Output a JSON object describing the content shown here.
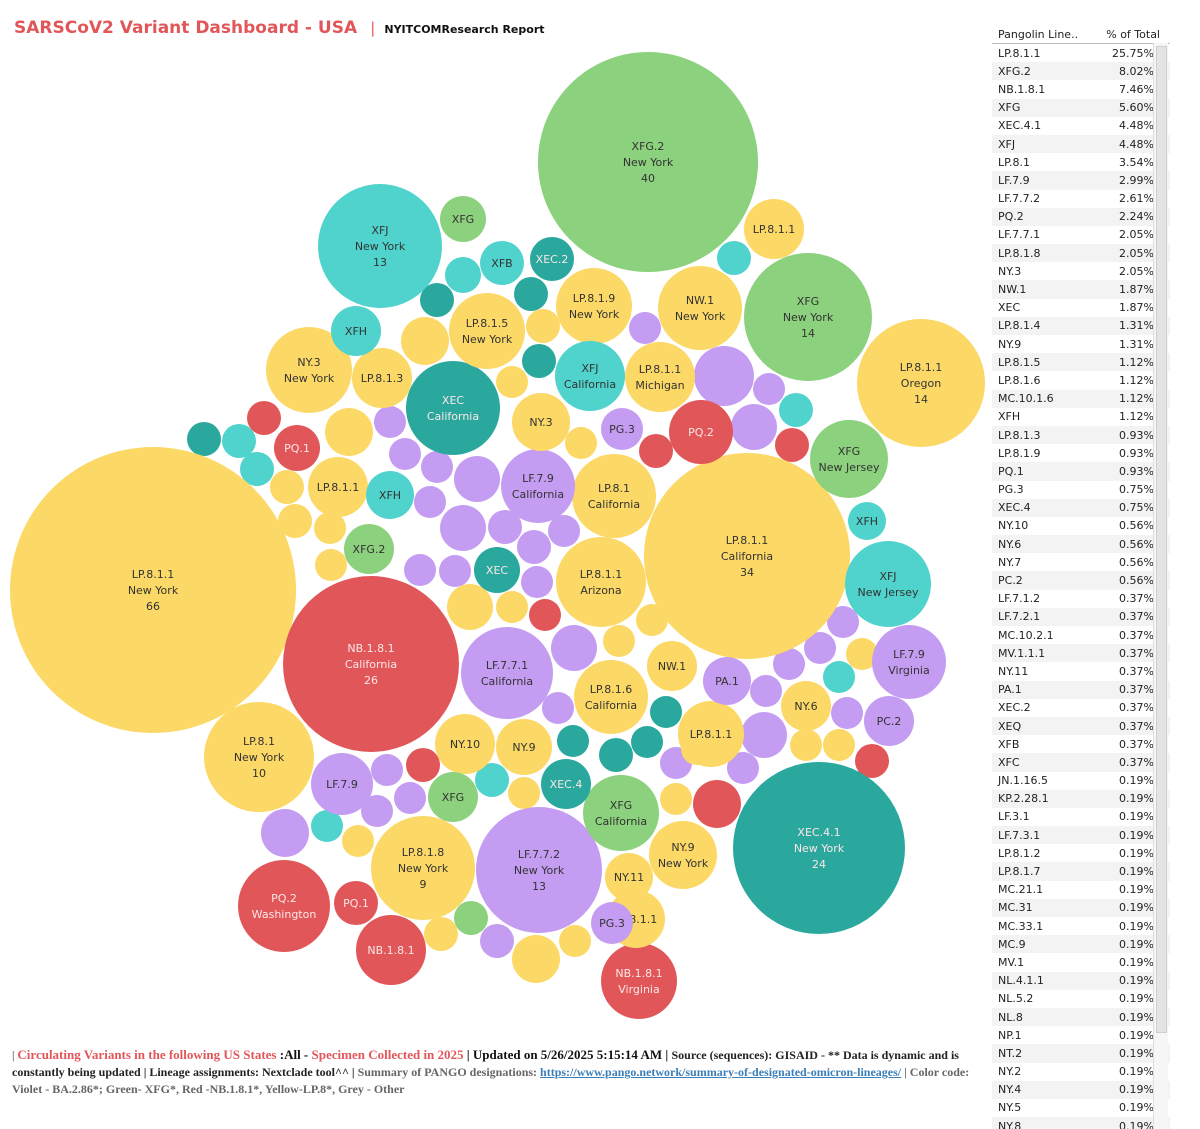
{
  "header": {
    "title": "SARSCoV2 Variant Dashboard - USA",
    "separator": "|",
    "subtitle": "NYITCOMResearch Report"
  },
  "colors": {
    "yellow": "#fcd866",
    "green": "#8cd17d",
    "red": "#e15759",
    "violet": "#c49cf2",
    "teal": "#2aa89e",
    "cyan": "#4fd3cc"
  },
  "chart_data": {
    "type": "bubble",
    "legend": [
      "Violet - BA.2.86*",
      "Green- XFG*",
      "Red -NB.1.8.1*",
      "Yellow-LP.8*",
      "Grey - Other"
    ],
    "labeled_bubbles": [
      {
        "lineage": "LP.8.1.1",
        "state": "New York",
        "count": "66",
        "color": "yellow"
      },
      {
        "lineage": "XFG.2",
        "state": "New York",
        "count": "40",
        "color": "green"
      },
      {
        "lineage": "LP.8.1.1",
        "state": "California",
        "count": "34",
        "color": "yellow"
      },
      {
        "lineage": "NB.1.8.1",
        "state": "California",
        "count": "26",
        "color": "red"
      },
      {
        "lineage": "XEC.4.1",
        "state": "New York",
        "count": "24",
        "color": "teal"
      },
      {
        "lineage": "XFG",
        "state": "New York",
        "count": "14",
        "color": "green"
      },
      {
        "lineage": "LP.8.1.1",
        "state": "Oregon",
        "count": "14",
        "color": "yellow"
      },
      {
        "lineage": "XFJ",
        "state": "New York",
        "count": "13",
        "color": "cyan"
      },
      {
        "lineage": "LF.7.7.2",
        "state": "New York",
        "count": "13",
        "color": "violet"
      },
      {
        "lineage": "LP.8.1",
        "state": "New York",
        "count": "10",
        "color": "yellow"
      },
      {
        "lineage": "LP.8.1.8",
        "state": "New York",
        "count": "9",
        "color": "yellow"
      },
      {
        "lineage": "LF.7.7.1",
        "state": "California",
        "count": "",
        "color": "violet"
      },
      {
        "lineage": "XFJ",
        "state": "New Jersey",
        "count": "",
        "color": "cyan"
      },
      {
        "lineage": "LF.7.9",
        "state": "Virginia",
        "count": "",
        "color": "violet"
      },
      {
        "lineage": "XFG",
        "state": "New Jersey",
        "count": "",
        "color": "green"
      },
      {
        "lineage": "LP.8.1.1",
        "state": "Arizona",
        "count": "",
        "color": "yellow"
      },
      {
        "lineage": "LP.8.1",
        "state": "California",
        "count": "",
        "color": "yellow"
      },
      {
        "lineage": "XEC",
        "state": "California",
        "count": "",
        "color": "teal"
      },
      {
        "lineage": "LF.7.9",
        "state": "California",
        "count": "",
        "color": "violet"
      },
      {
        "lineage": "LP.8.1.6",
        "state": "California",
        "count": "",
        "color": "yellow"
      },
      {
        "lineage": "XFG",
        "state": "California",
        "count": "",
        "color": "green"
      },
      {
        "lineage": "PQ.2",
        "state": "Washington",
        "count": "",
        "color": "red"
      },
      {
        "lineage": "NB.1.8.1",
        "state": "Virginia",
        "count": "",
        "color": "red"
      },
      {
        "lineage": "NY.3",
        "state": "New York",
        "count": "",
        "color": "yellow"
      },
      {
        "lineage": "LP.8.1.5",
        "state": "New York",
        "count": "",
        "color": "yellow"
      },
      {
        "lineage": "LP.8.1.9",
        "state": "New York",
        "count": "",
        "color": "yellow"
      },
      {
        "lineage": "NW.1",
        "state": "New York",
        "count": "",
        "color": "yellow"
      },
      {
        "lineage": "XFJ",
        "state": "California",
        "count": "",
        "color": "cyan"
      },
      {
        "lineage": "LP.8.1.1",
        "state": "Michigan",
        "count": "",
        "color": "yellow"
      },
      {
        "lineage": "NY.9",
        "state": "New York",
        "count": "",
        "color": "yellow"
      },
      {
        "lineage": "LP.8.1.1",
        "state": "",
        "count": "",
        "color": "yellow"
      },
      {
        "lineage": "LP.8.1.1",
        "state": "",
        "count": "",
        "color": "yellow"
      },
      {
        "lineage": "LP.8.1.1",
        "state": "",
        "count": "",
        "color": "yellow"
      },
      {
        "lineage": "LP.8.1.1",
        "state": "",
        "count": "",
        "color": "yellow"
      },
      {
        "lineage": "LP.8.1.3",
        "state": "",
        "count": "",
        "color": "yellow"
      },
      {
        "lineage": "XFG",
        "state": "",
        "count": "",
        "color": "green"
      },
      {
        "lineage": "XFB",
        "state": "",
        "count": "",
        "color": "cyan"
      },
      {
        "lineage": "XEC.2",
        "state": "",
        "count": "",
        "color": "teal"
      },
      {
        "lineage": "XFH",
        "state": "",
        "count": "",
        "color": "cyan"
      },
      {
        "lineage": "XFH",
        "state": "",
        "count": "",
        "color": "cyan"
      },
      {
        "lineage": "XFH",
        "state": "",
        "count": "",
        "color": "cyan"
      },
      {
        "lineage": "PQ.1",
        "state": "",
        "count": "",
        "color": "red"
      },
      {
        "lineage": "PQ.1",
        "state": "",
        "count": "",
        "color": "red"
      },
      {
        "lineage": "PQ.2",
        "state": "",
        "count": "",
        "color": "red"
      },
      {
        "lineage": "NY.3",
        "state": "",
        "count": "",
        "color": "yellow"
      },
      {
        "lineage": "PG.3",
        "state": "",
        "count": "",
        "color": "violet"
      },
      {
        "lineage": "PG.3",
        "state": "",
        "count": "",
        "color": "violet"
      },
      {
        "lineage": "XFG.2",
        "state": "",
        "count": "",
        "color": "green"
      },
      {
        "lineage": "XEC",
        "state": "",
        "count": "",
        "color": "teal"
      },
      {
        "lineage": "NW.1",
        "state": "",
        "count": "",
        "color": "yellow"
      },
      {
        "lineage": "PA.1",
        "state": "",
        "count": "",
        "color": "violet"
      },
      {
        "lineage": "NY.6",
        "state": "",
        "count": "",
        "color": "yellow"
      },
      {
        "lineage": "PC.2",
        "state": "",
        "count": "",
        "color": "violet"
      },
      {
        "lineage": "NY.10",
        "state": "",
        "count": "",
        "color": "yellow"
      },
      {
        "lineage": "NY.9",
        "state": "",
        "count": "",
        "color": "yellow"
      },
      {
        "lineage": "LF.7.9",
        "state": "",
        "count": "",
        "color": "violet"
      },
      {
        "lineage": "XFG",
        "state": "",
        "count": "",
        "color": "green"
      },
      {
        "lineage": "XEC.4",
        "state": "",
        "count": "",
        "color": "teal"
      },
      {
        "lineage": "NY.11",
        "state": "",
        "count": "",
        "color": "yellow"
      },
      {
        "lineage": "NB.1.8.1",
        "state": "",
        "count": "",
        "color": "red"
      }
    ],
    "table": {
      "columns": [
        "Pangolin Line..",
        "% of Total"
      ],
      "rows": [
        [
          "LP.8.1.1",
          "25.75%"
        ],
        [
          "XFG.2",
          "8.02%"
        ],
        [
          "NB.1.8.1",
          "7.46%"
        ],
        [
          "XFG",
          "5.60%"
        ],
        [
          "XEC.4.1",
          "4.48%"
        ],
        [
          "XFJ",
          "4.48%"
        ],
        [
          "LP.8.1",
          "3.54%"
        ],
        [
          "LF.7.9",
          "2.99%"
        ],
        [
          "LF.7.7.2",
          "2.61%"
        ],
        [
          "PQ.2",
          "2.24%"
        ],
        [
          "LF.7.7.1",
          "2.05%"
        ],
        [
          "LP.8.1.8",
          "2.05%"
        ],
        [
          "NY.3",
          "2.05%"
        ],
        [
          "NW.1",
          "1.87%"
        ],
        [
          "XEC",
          "1.87%"
        ],
        [
          "LP.8.1.4",
          "1.31%"
        ],
        [
          "NY.9",
          "1.31%"
        ],
        [
          "LP.8.1.5",
          "1.12%"
        ],
        [
          "LP.8.1.6",
          "1.12%"
        ],
        [
          "MC.10.1.6",
          "1.12%"
        ],
        [
          "XFH",
          "1.12%"
        ],
        [
          "LP.8.1.3",
          "0.93%"
        ],
        [
          "LP.8.1.9",
          "0.93%"
        ],
        [
          "PQ.1",
          "0.93%"
        ],
        [
          "PG.3",
          "0.75%"
        ],
        [
          "XEC.4",
          "0.75%"
        ],
        [
          "NY.10",
          "0.56%"
        ],
        [
          "NY.6",
          "0.56%"
        ],
        [
          "NY.7",
          "0.56%"
        ],
        [
          "PC.2",
          "0.56%"
        ],
        [
          "LF.7.1.2",
          "0.37%"
        ],
        [
          "LF.7.2.1",
          "0.37%"
        ],
        [
          "MC.10.2.1",
          "0.37%"
        ],
        [
          "MV.1.1.1",
          "0.37%"
        ],
        [
          "NY.11",
          "0.37%"
        ],
        [
          "PA.1",
          "0.37%"
        ],
        [
          "XEC.2",
          "0.37%"
        ],
        [
          "XEQ",
          "0.37%"
        ],
        [
          "XFB",
          "0.37%"
        ],
        [
          "XFC",
          "0.37%"
        ],
        [
          "JN.1.16.5",
          "0.19%"
        ],
        [
          "KP.2.28.1",
          "0.19%"
        ],
        [
          "LF.3.1",
          "0.19%"
        ],
        [
          "LF.7.3.1",
          "0.19%"
        ],
        [
          "LP.8.1.2",
          "0.19%"
        ],
        [
          "LP.8.1.7",
          "0.19%"
        ],
        [
          "MC.21.1",
          "0.19%"
        ],
        [
          "MC.31",
          "0.19%"
        ],
        [
          "MC.33.1",
          "0.19%"
        ],
        [
          "MC.9",
          "0.19%"
        ],
        [
          "MV.1",
          "0.19%"
        ],
        [
          "NL.4.1.1",
          "0.19%"
        ],
        [
          "NL.5.2",
          "0.19%"
        ],
        [
          "NL.8",
          "0.19%"
        ],
        [
          "NP.1",
          "0.19%"
        ],
        [
          "NT.2",
          "0.19%"
        ],
        [
          "NY.2",
          "0.19%"
        ],
        [
          "NY.4",
          "0.19%"
        ],
        [
          "NY.5",
          "0.19%"
        ],
        [
          "NY.8",
          "0.19%"
        ]
      ]
    }
  },
  "footer": {
    "p1": "| ",
    "circulating": "Circulating Variants in the following US States",
    "states": " :All - ",
    "specimen": "Specimen Collected in 2025",
    "updated": " | Updated on 5/26/2025 5:15:14 AM | ",
    "source": "Source (sequences): GISAID - ** Data is dynamic and is constantly being updated | Lineage assignments: Nextclade tool^^ | ",
    "summary": "Summary of PANGO designations: ",
    "link": "https://www.pango.network/summary-of-designated-omicron-lineages/",
    "colorcode": " | Color code: Violet - BA.2.86*; Green- XFG*, Red -NB.1.8.1*, Yellow-LP.8*, Grey - Other"
  }
}
